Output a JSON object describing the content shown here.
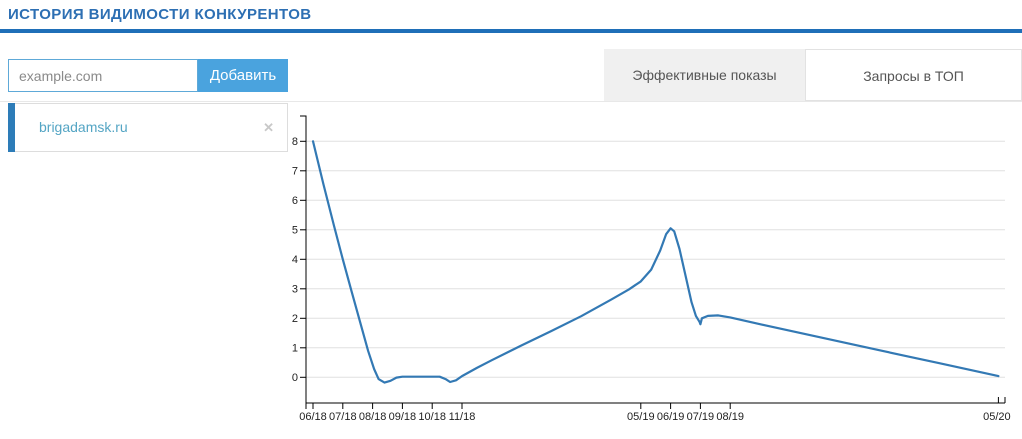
{
  "header": {
    "title": "ИСТОРИЯ ВИДИМОСТИ КОНКУРЕНТОВ",
    "title_color": "#2d6fb3",
    "underline_color": "#1f6fb8"
  },
  "controls": {
    "domain_input": {
      "value": "",
      "placeholder": "example.com"
    },
    "add_button": {
      "label": "Добавить",
      "color": "#4aa3de"
    }
  },
  "tabs": [
    {
      "label": "Эффективные показы",
      "active": true
    },
    {
      "label": "Запросы в ТОП",
      "active": false
    }
  ],
  "competitors": [
    {
      "domain": "brigadamsk.ru",
      "accent_color": "#2d7cb8",
      "remove_icon": "✕"
    }
  ],
  "chart_data": {
    "type": "line",
    "title": "",
    "legend": "none",
    "grid": "horizontal",
    "x_axis": {
      "unit": "month (MM/YY)",
      "start": "06/18",
      "end": "05/20",
      "tick_labels": [
        "06/18",
        "07/18",
        "08/18",
        "09/18",
        "10/18",
        "11/18",
        "05/19",
        "06/19",
        "07/19",
        "08/19",
        "05/20"
      ],
      "tick_month_index": [
        0,
        1,
        2,
        3,
        4,
        5,
        11,
        12,
        13,
        14,
        23
      ]
    },
    "y_axis": {
      "ticks": [
        0,
        1,
        2,
        3,
        4,
        5,
        6,
        7,
        8
      ],
      "range": [
        0,
        8
      ]
    },
    "series": [
      {
        "name": "brigadamsk.ru",
        "color": "#3379b4",
        "monthly_points": [
          [
            "06/18",
            8.0
          ],
          [
            "07/18",
            4.0
          ],
          [
            "08/18",
            0.0
          ],
          [
            "09/18",
            0.0
          ],
          [
            "10/18",
            0.0
          ],
          [
            "11/18",
            0.05
          ],
          [
            "12/18",
            0.6
          ],
          [
            "01/19",
            1.1
          ],
          [
            "02/19",
            1.6
          ],
          [
            "03/19",
            2.1
          ],
          [
            "04/19",
            2.65
          ],
          [
            "05/19",
            3.25
          ],
          [
            "06/19",
            5.05
          ],
          [
            "07/19",
            1.9
          ],
          [
            "08/19",
            2.05
          ],
          [
            "09/19",
            1.8
          ],
          [
            "10/19",
            1.6
          ],
          [
            "11/19",
            1.35
          ],
          [
            "12/19",
            1.15
          ],
          [
            "01/20",
            0.9
          ],
          [
            "02/20",
            0.7
          ],
          [
            "03/20",
            0.45
          ],
          [
            "04/20",
            0.25
          ],
          [
            "05/20",
            0.05
          ]
        ],
        "render_path_points": [
          [
            0,
            8
          ],
          [
            0.35,
            6.55
          ],
          [
            0.7,
            5.15
          ],
          [
            1,
            4.0
          ],
          [
            1.3,
            2.9
          ],
          [
            1.6,
            1.8
          ],
          [
            1.85,
            0.9
          ],
          [
            2.05,
            0.28
          ],
          [
            2.2,
            -0.06
          ],
          [
            2.4,
            -0.18
          ],
          [
            2.6,
            -0.12
          ],
          [
            2.8,
            -0.01
          ],
          [
            3.0,
            0.02
          ],
          [
            4.25,
            0.02
          ],
          [
            4.45,
            -0.06
          ],
          [
            4.6,
            -0.16
          ],
          [
            4.8,
            -0.1
          ],
          [
            5.0,
            0.04
          ],
          [
            5.5,
            0.32
          ],
          [
            6,
            0.58
          ],
          [
            7,
            1.08
          ],
          [
            8,
            1.57
          ],
          [
            9,
            2.07
          ],
          [
            10,
            2.63
          ],
          [
            10.6,
            2.98
          ],
          [
            11,
            3.25
          ],
          [
            11.35,
            3.65
          ],
          [
            11.65,
            4.3
          ],
          [
            11.85,
            4.85
          ],
          [
            12,
            5.05
          ],
          [
            12.12,
            4.95
          ],
          [
            12.3,
            4.35
          ],
          [
            12.5,
            3.45
          ],
          [
            12.7,
            2.55
          ],
          [
            12.85,
            2.08
          ],
          [
            12.97,
            1.88
          ],
          [
            13,
            1.8
          ],
          [
            13.05,
            2.0
          ],
          [
            13.25,
            2.08
          ],
          [
            13.6,
            2.1
          ],
          [
            14,
            2.03
          ],
          [
            15,
            1.8
          ],
          [
            16,
            1.58
          ],
          [
            17,
            1.36
          ],
          [
            18,
            1.14
          ],
          [
            19,
            0.92
          ],
          [
            20,
            0.7
          ],
          [
            21,
            0.48
          ],
          [
            22,
            0.26
          ],
          [
            23,
            0.04
          ]
        ]
      }
    ]
  }
}
